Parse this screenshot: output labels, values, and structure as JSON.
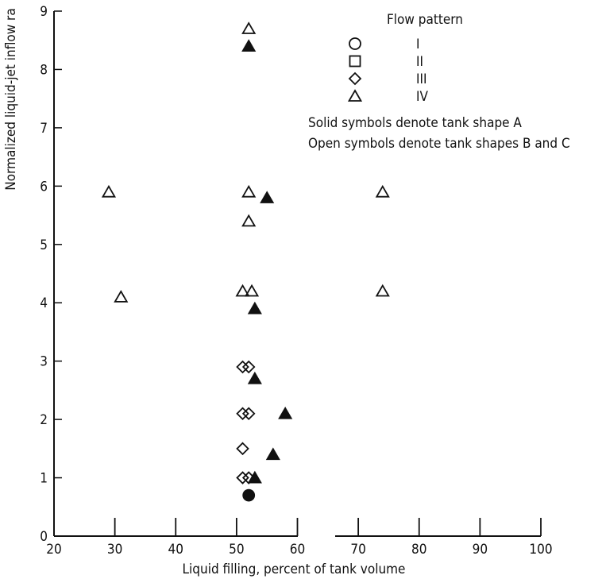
{
  "chart_data": {
    "type": "scatter",
    "xlabel": "Liquid filling,  percent of tank volume",
    "ylabel": "Normalized liquid-jet inflow ra",
    "xlim": [
      20,
      100
    ],
    "ylim": [
      0,
      9
    ],
    "x_ticks": [
      "20",
      "30",
      "40",
      "50",
      "60",
      "70",
      "80",
      "90",
      "100"
    ],
    "y_ticks": [
      "0",
      "1",
      "2",
      "3",
      "4",
      "5",
      "6",
      "7",
      "8",
      "9"
    ],
    "grid": false,
    "legend": {
      "placement": "top-right",
      "title": "Flow pattern",
      "entries": [
        {
          "symbol": "circle",
          "label": "I"
        },
        {
          "symbol": "square",
          "label": "II"
        },
        {
          "symbol": "diamond",
          "label": "III"
        },
        {
          "symbol": "triangle",
          "label": "IV"
        }
      ],
      "notes": [
        "Solid symbols denote tank shape A",
        "Open symbols denote tank shapes B and C"
      ]
    },
    "points": [
      {
        "x": 52,
        "y": 0.7,
        "symbol": "circle",
        "filled": true
      },
      {
        "x": 51,
        "y": 1.0,
        "symbol": "diamond",
        "filled": false
      },
      {
        "x": 52,
        "y": 1.0,
        "symbol": "diamond",
        "filled": false
      },
      {
        "x": 53,
        "y": 1.0,
        "symbol": "triangle",
        "filled": true
      },
      {
        "x": 51,
        "y": 1.5,
        "symbol": "diamond",
        "filled": false
      },
      {
        "x": 56,
        "y": 1.4,
        "symbol": "triangle",
        "filled": true
      },
      {
        "x": 51,
        "y": 2.1,
        "symbol": "diamond",
        "filled": false
      },
      {
        "x": 52,
        "y": 2.1,
        "symbol": "diamond",
        "filled": false
      },
      {
        "x": 58,
        "y": 2.1,
        "symbol": "triangle",
        "filled": true
      },
      {
        "x": 51,
        "y": 2.9,
        "symbol": "diamond",
        "filled": false
      },
      {
        "x": 52,
        "y": 2.9,
        "symbol": "diamond",
        "filled": false
      },
      {
        "x": 53,
        "y": 2.7,
        "symbol": "triangle",
        "filled": true
      },
      {
        "x": 31,
        "y": 4.1,
        "symbol": "triangle",
        "filled": false
      },
      {
        "x": 51,
        "y": 4.2,
        "symbol": "triangle",
        "filled": false
      },
      {
        "x": 52.5,
        "y": 4.2,
        "symbol": "triangle",
        "filled": false
      },
      {
        "x": 53,
        "y": 3.9,
        "symbol": "triangle",
        "filled": true
      },
      {
        "x": 74,
        "y": 4.2,
        "symbol": "triangle",
        "filled": false
      },
      {
        "x": 52,
        "y": 5.4,
        "symbol": "triangle",
        "filled": false
      },
      {
        "x": 29,
        "y": 5.9,
        "symbol": "triangle",
        "filled": false
      },
      {
        "x": 52,
        "y": 5.9,
        "symbol": "triangle",
        "filled": false
      },
      {
        "x": 55,
        "y": 5.8,
        "symbol": "triangle",
        "filled": true
      },
      {
        "x": 74,
        "y": 5.9,
        "symbol": "triangle",
        "filled": false
      },
      {
        "x": 52,
        "y": 8.4,
        "symbol": "triangle",
        "filled": true
      },
      {
        "x": 52,
        "y": 8.7,
        "symbol": "triangle",
        "filled": false
      }
    ]
  }
}
